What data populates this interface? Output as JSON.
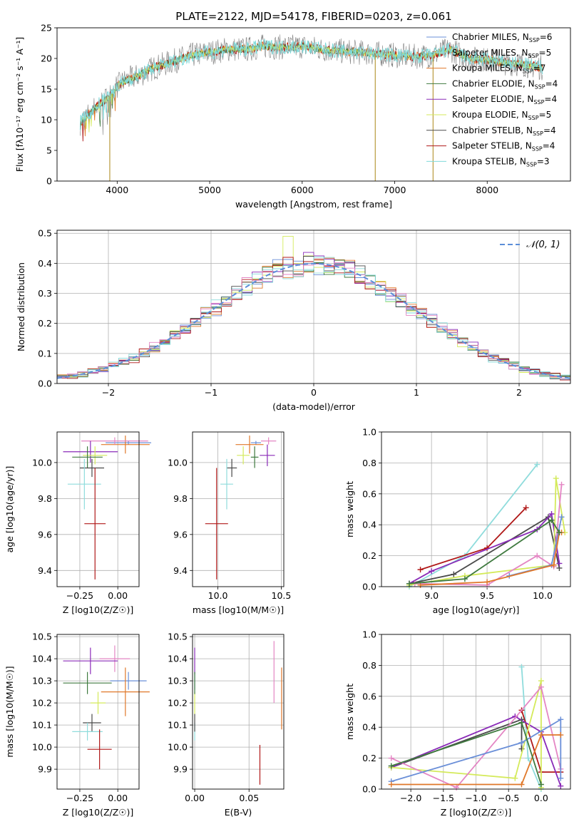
{
  "colors": {
    "chabrier_miles": "#6a8fd8",
    "salpeter_miles": "#8fdcdc",
    "kroupa_miles": "#e0782a",
    "chabrier_elodie": "#3f7a3f",
    "salpeter_elodie": "#8a2ab8",
    "kroupa_elodie": "#d4ea5a",
    "chabrier_stelib": "#4a4a4a",
    "salpeter_stelib": "#b01818",
    "kroupa_stelib": "#7fdada",
    "pink": "#e486c4",
    "normal_curve": "#5b8ed8"
  },
  "chart_data": [
    {
      "id": "spectrum",
      "type": "line",
      "title": "PLATE=2122, MJD=54178, FIBERID=0203, z=0.061",
      "xlabel": "wavelength [Angstrom, rest frame]",
      "ylabel": "Flux [fλ10⁻¹⁷ erg cm⁻² s⁻¹ A⁻¹]",
      "xlim": [
        3350,
        8900
      ],
      "ylim": [
        0,
        25
      ],
      "xticks": [
        "4000",
        "5000",
        "6000",
        "7000",
        "8000"
      ],
      "yticks": [
        "0",
        "5",
        "10",
        "15",
        "20",
        "25"
      ],
      "legend_placement": "upper right",
      "legend": [
        {
          "label": "Chabrier MILES, N",
          "sub": "SSP",
          "tail": "=6",
          "color": "#6a8fd8"
        },
        {
          "label": "Salpeter MILES, N",
          "sub": "SSP",
          "tail": "=5",
          "color": "#8fdcdc"
        },
        {
          "label": "Kroupa MILES, N",
          "sub": "SSP",
          "tail": "=7",
          "color": "#e0782a"
        },
        {
          "label": "Chabrier ELODIE, N",
          "sub": "SSP",
          "tail": "=4",
          "color": "#3f7a3f"
        },
        {
          "label": "Salpeter ELODIE, N",
          "sub": "SSP",
          "tail": "=4",
          "color": "#8a2ab8"
        },
        {
          "label": "Kroupa ELODIE, N",
          "sub": "SSP",
          "tail": "=5",
          "color": "#d4ea5a"
        },
        {
          "label": "Chabrier STELIB, N",
          "sub": "SSP",
          "tail": "=4",
          "color": "#4a4a4a"
        },
        {
          "label": "Salpeter STELIB, N",
          "sub": "SSP",
          "tail": "=4",
          "color": "#b01818"
        },
        {
          "label": "Kroupa STELIB, N",
          "sub": "SSP",
          "tail": "=3",
          "color": "#7fdada"
        }
      ],
      "continuum": {
        "x": [
          3600,
          3700,
          3800,
          3900,
          4000,
          4100,
          4200,
          4400,
          4600,
          4800,
          5000,
          5200,
          5400,
          5600,
          5800,
          6000,
          6200,
          6400,
          6600,
          6800,
          7000,
          7200,
          7400,
          7600,
          7800,
          8000,
          8200,
          8400,
          8600
        ],
        "y": [
          9.5,
          11,
          12.5,
          13.5,
          15.5,
          16.5,
          17,
          18.5,
          19.5,
          20.5,
          21,
          21.5,
          21.5,
          22,
          21.8,
          22,
          21.5,
          21.2,
          21,
          20.8,
          20.5,
          20.3,
          20.5,
          21.5,
          20,
          19.8,
          19.3,
          19,
          18.5
        ]
      },
      "spikes": [
        {
          "x": 3920,
          "y": 0
        },
        {
          "x": 6790,
          "y": 0
        },
        {
          "x": 7415,
          "y": 0
        }
      ]
    },
    {
      "id": "residuals",
      "type": "histogram",
      "xlabel": "(data-model)/error",
      "ylabel": "Normed distribution",
      "xlim": [
        -2.5,
        2.5
      ],
      "ylim": [
        0,
        0.51
      ],
      "xticks": [
        "−2",
        "−1",
        "0",
        "1",
        "2"
      ],
      "yticks": [
        "0.0",
        "0.1",
        "0.2",
        "0.3",
        "0.4",
        "0.5"
      ],
      "grid": true,
      "legend_placement": "upper right",
      "legend_label": "𝒩(0, 1)",
      "bin_width": 0.1,
      "peak_outlier": {
        "x": -0.25,
        "y": 0.49
      }
    },
    {
      "id": "age_vs_Z",
      "type": "errorbar",
      "xlabel": "Z [log10(Z/Z☉)]",
      "ylabel": "age  [log10(age/yr)]",
      "xlim": [
        -0.4,
        0.14
      ],
      "ylim": [
        9.31,
        10.17
      ],
      "xticks": [
        "−0.25",
        "0.00"
      ],
      "yticks": [
        "9.4",
        "9.6",
        "9.8",
        "10.0"
      ],
      "grid": true,
      "points": [
        {
          "x": 0.07,
          "y": 10.11,
          "xerr": 0.15,
          "yerr": 0.01,
          "color": "#6a8fd8"
        },
        {
          "x": 0.05,
          "y": 10.1,
          "xerr": 0.16,
          "yerr": 0.05,
          "color": "#e0782a"
        },
        {
          "x": -0.02,
          "y": 10.12,
          "xerr": 0.22,
          "yerr": 0.02,
          "color": "#e486c4"
        },
        {
          "x": -0.18,
          "y": 10.06,
          "xerr": 0.18,
          "yerr": 0.06,
          "color": "#8a2ab8"
        },
        {
          "x": -0.15,
          "y": 10.04,
          "xerr": 0.08,
          "yerr": 0.05,
          "color": "#d4ea5a"
        },
        {
          "x": -0.2,
          "y": 10.03,
          "xerr": 0.1,
          "yerr": 0.06,
          "color": "#3f7a3f"
        },
        {
          "x": -0.17,
          "y": 9.97,
          "xerr": 0.08,
          "yerr": 0.05,
          "color": "#4a4a4a"
        },
        {
          "x": -0.22,
          "y": 9.88,
          "xerr": 0.11,
          "yerr": 0.14,
          "color": "#8fdcdc"
        },
        {
          "x": -0.15,
          "y": 9.66,
          "xerr": 0.07,
          "yerr": 0.31,
          "color": "#b01818"
        }
      ]
    },
    {
      "id": "age_vs_mass",
      "type": "errorbar",
      "xlabel": "mass [log10(M/M☉)]",
      "xlim": [
        9.8,
        10.52
      ],
      "ylim": [
        9.31,
        10.17
      ],
      "xticks": [
        "10.0",
        "10.5"
      ],
      "yticks": [
        "9.4",
        "9.6",
        "9.8",
        "10.0"
      ],
      "grid": true,
      "points": [
        {
          "x": 10.3,
          "y": 10.11,
          "xerr": 0.04,
          "yerr": 0.01,
          "color": "#6a8fd8"
        },
        {
          "x": 10.25,
          "y": 10.1,
          "xerr": 0.11,
          "yerr": 0.05,
          "color": "#e0782a"
        },
        {
          "x": 10.4,
          "y": 10.12,
          "xerr": 0.06,
          "yerr": 0.02,
          "color": "#e486c4"
        },
        {
          "x": 10.39,
          "y": 10.04,
          "xerr": 0.06,
          "yerr": 0.06,
          "color": "#8a2ab8"
        },
        {
          "x": 10.2,
          "y": 10.04,
          "xerr": 0.05,
          "yerr": 0.05,
          "color": "#d4ea5a"
        },
        {
          "x": 10.29,
          "y": 10.03,
          "xerr": 0.03,
          "yerr": 0.06,
          "color": "#3f7a3f"
        },
        {
          "x": 10.11,
          "y": 9.97,
          "xerr": 0.04,
          "yerr": 0.05,
          "color": "#4a4a4a"
        },
        {
          "x": 10.07,
          "y": 9.88,
          "xerr": 0.05,
          "yerr": 0.14,
          "color": "#8fdcdc"
        },
        {
          "x": 9.99,
          "y": 9.66,
          "xerr": 0.09,
          "yerr": 0.31,
          "color": "#b01818"
        }
      ]
    },
    {
      "id": "massweight_vs_age",
      "type": "line",
      "xlabel": "age  [log10(age/yr)]",
      "ylabel": "mass weight",
      "xlim": [
        8.55,
        10.25
      ],
      "ylim": [
        0,
        1
      ],
      "xticks": [
        "9.0",
        "9.5",
        "10.0"
      ],
      "yticks": [
        "0.0",
        "0.2",
        "0.4",
        "0.6",
        "0.8",
        "1.0"
      ],
      "grid": true,
      "series": [
        {
          "color": "#8fdcdc",
          "x": [
            8.8,
            9.3,
            9.95
          ],
          "y": [
            0.0,
            0.2,
            0.79
          ]
        },
        {
          "color": "#b01818",
          "x": [
            8.9,
            9.5,
            9.85
          ],
          "y": [
            0.11,
            0.25,
            0.51
          ]
        },
        {
          "color": "#4a4a4a",
          "x": [
            8.8,
            9.2,
            10.05,
            10.15
          ],
          "y": [
            0.02,
            0.08,
            0.45,
            0.12
          ]
        },
        {
          "color": "#8a2ab8",
          "x": [
            8.8,
            9.0,
            9.95,
            10.08,
            10.15
          ],
          "y": [
            0.02,
            0.1,
            0.37,
            0.47,
            0.15
          ]
        },
        {
          "color": "#d4ea5a",
          "x": [
            8.8,
            9.3,
            10.1,
            10.12,
            10.2
          ],
          "y": [
            0.01,
            0.07,
            0.14,
            0.7,
            0.35
          ]
        },
        {
          "color": "#e486c4",
          "x": [
            8.85,
            9.5,
            9.95,
            10.1,
            10.17
          ],
          "y": [
            0.02,
            0.01,
            0.2,
            0.13,
            0.66
          ]
        },
        {
          "color": "#6a8fd8",
          "x": [
            9.7,
            10.08,
            10.17
          ],
          "y": [
            0.07,
            0.14,
            0.45
          ]
        },
        {
          "color": "#e0782a",
          "x": [
            8.9,
            9.5,
            10.1,
            10.15,
            10.17
          ],
          "y": [
            0.01,
            0.03,
            0.14,
            0.35,
            0.35
          ]
        },
        {
          "color": "#3f7a3f",
          "x": [
            8.8,
            9.3,
            10.08,
            10.15
          ],
          "y": [
            0.02,
            0.05,
            0.43,
            0.35
          ]
        }
      ]
    },
    {
      "id": "mass_vs_Z",
      "type": "errorbar",
      "xlabel": "Z [log10(Z/Z☉)]",
      "ylabel": "mass [log10(M/M☉)]",
      "xlim": [
        -0.4,
        0.14
      ],
      "ylim": [
        9.81,
        10.51
      ],
      "xticks": [
        "−0.25",
        "0.00"
      ],
      "yticks": [
        "9.9",
        "10.0",
        "10.1",
        "10.2",
        "10.3",
        "10.4",
        "10.5"
      ],
      "grid": true,
      "points": [
        {
          "x": 0.07,
          "y": 10.3,
          "xerr": 0.12,
          "yerr": 0.04,
          "color": "#6a8fd8"
        },
        {
          "x": 0.05,
          "y": 10.25,
          "xerr": 0.16,
          "yerr": 0.11,
          "color": "#e0782a"
        },
        {
          "x": -0.02,
          "y": 10.4,
          "xerr": 0.1,
          "yerr": 0.06,
          "color": "#e486c4"
        },
        {
          "x": -0.18,
          "y": 10.39,
          "xerr": 0.18,
          "yerr": 0.06,
          "color": "#8a2ab8"
        },
        {
          "x": -0.13,
          "y": 10.2,
          "xerr": 0.05,
          "yerr": 0.05,
          "color": "#d4ea5a"
        },
        {
          "x": -0.2,
          "y": 10.29,
          "xerr": 0.16,
          "yerr": 0.05,
          "color": "#3f7a3f"
        },
        {
          "x": -0.17,
          "y": 10.11,
          "xerr": 0.06,
          "yerr": 0.04,
          "color": "#4a4a4a"
        },
        {
          "x": -0.2,
          "y": 10.07,
          "xerr": 0.1,
          "yerr": 0.04,
          "color": "#8fdcdc"
        },
        {
          "x": -0.12,
          "y": 9.99,
          "xerr": 0.08,
          "yerr": 0.09,
          "color": "#b01818"
        }
      ]
    },
    {
      "id": "mass_vs_ebv",
      "type": "errorbar",
      "xlabel": "E(B-V)",
      "xlim": [
        -0.002,
        0.082
      ],
      "ylim": [
        9.81,
        10.51
      ],
      "xticks": [
        "0.00",
        "0.05"
      ],
      "yticks": [
        "9.9",
        "10.0",
        "10.1",
        "10.2",
        "10.3",
        "10.4",
        "10.5"
      ],
      "grid": true,
      "points": [
        {
          "x": 0.0,
          "y": 10.3,
          "xerr": 0,
          "yerr": 0.04,
          "color": "#6a8fd8"
        },
        {
          "x": 0.0,
          "y": 10.39,
          "xerr": 0,
          "yerr": 0.06,
          "color": "#8a2ab8"
        },
        {
          "x": 0.0,
          "y": 10.2,
          "xerr": 0,
          "yerr": 0.05,
          "color": "#d4ea5a"
        },
        {
          "x": 0.0,
          "y": 10.07,
          "xerr": 0,
          "yerr": 0.04,
          "color": "#8fdcdc"
        },
        {
          "x": 0.0,
          "y": 10.29,
          "xerr": 0,
          "yerr": 0.05,
          "color": "#3f7a3f"
        },
        {
          "x": 0.0,
          "y": 10.11,
          "xerr": 0,
          "yerr": 0.04,
          "color": "#4a4a4a"
        },
        {
          "x": 0.073,
          "y": 10.34,
          "xerr": 0,
          "yerr": 0.14,
          "color": "#e486c4"
        },
        {
          "x": 0.08,
          "y": 10.22,
          "xerr": 0,
          "yerr": 0.14,
          "color": "#e0782a"
        },
        {
          "x": 0.06,
          "y": 9.92,
          "xerr": 0,
          "yerr": 0.09,
          "color": "#b01818"
        }
      ]
    },
    {
      "id": "massweight_vs_Z",
      "type": "line",
      "xlabel": "Z [log10(Z/Z☉)]",
      "ylabel": "mass weight",
      "xlim": [
        -2.45,
        0.45
      ],
      "ylim": [
        0,
        1
      ],
      "xticks": [
        "−2.0",
        "−1.5",
        "−1.0",
        "−0.5",
        "0.0"
      ],
      "yticks": [
        "0.0",
        "0.2",
        "0.4",
        "0.6",
        "0.8",
        "1.0"
      ],
      "grid": true,
      "series": [
        {
          "color": "#8fdcdc",
          "x": [
            -0.3,
            -0.2,
            0.0
          ],
          "y": [
            0.79,
            0.2,
            0.0
          ]
        },
        {
          "color": "#b01818",
          "x": [
            -0.3,
            0.0,
            0.3
          ],
          "y": [
            0.51,
            0.11,
            0.11
          ]
        },
        {
          "color": "#4a4a4a",
          "x": [
            -2.3,
            -0.3,
            -0.3
          ],
          "y": [
            0.14,
            0.45,
            0.26
          ]
        },
        {
          "color": "#8a2ab8",
          "x": [
            -2.3,
            -0.4,
            0.0,
            0.3
          ],
          "y": [
            0.14,
            0.47,
            0.37,
            0.02
          ]
        },
        {
          "color": "#d4ea5a",
          "x": [
            -2.3,
            -0.4,
            0.0,
            0.0
          ],
          "y": [
            0.14,
            0.07,
            0.7,
            0.01
          ]
        },
        {
          "color": "#e486c4",
          "x": [
            -2.3,
            -1.3,
            0.0,
            0.3
          ],
          "y": [
            0.2,
            0.01,
            0.66,
            0.13
          ]
        },
        {
          "color": "#6a8fd8",
          "x": [
            -2.3,
            -0.3,
            0.3,
            0.3
          ],
          "y": [
            0.05,
            0.3,
            0.45,
            0.07
          ]
        },
        {
          "color": "#e0782a",
          "x": [
            -2.3,
            -0.3,
            0.0,
            0.3
          ],
          "y": [
            0.03,
            0.03,
            0.35,
            0.35
          ]
        },
        {
          "color": "#3f7a3f",
          "x": [
            -2.3,
            -0.3,
            0.0
          ],
          "y": [
            0.15,
            0.43,
            0.03
          ]
        }
      ]
    }
  ]
}
